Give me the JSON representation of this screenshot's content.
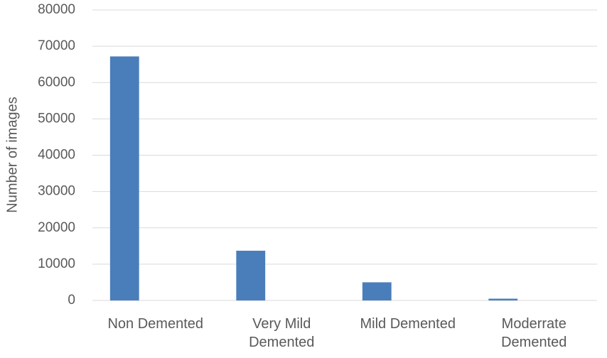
{
  "chart_data": {
    "type": "bar",
    "y_label": "Number of images",
    "categories": [
      "Non Demented",
      "Very Mild Demented",
      "Mild Demented",
      "Moderrate Demented"
    ],
    "values": [
      67200,
      13700,
      5000,
      490
    ],
    "color": "#4a7ebb",
    "ylim": [
      0,
      80000
    ],
    "yticks": [
      0,
      10000,
      20000,
      30000,
      40000,
      50000,
      60000,
      70000,
      80000
    ],
    "grid": true
  }
}
